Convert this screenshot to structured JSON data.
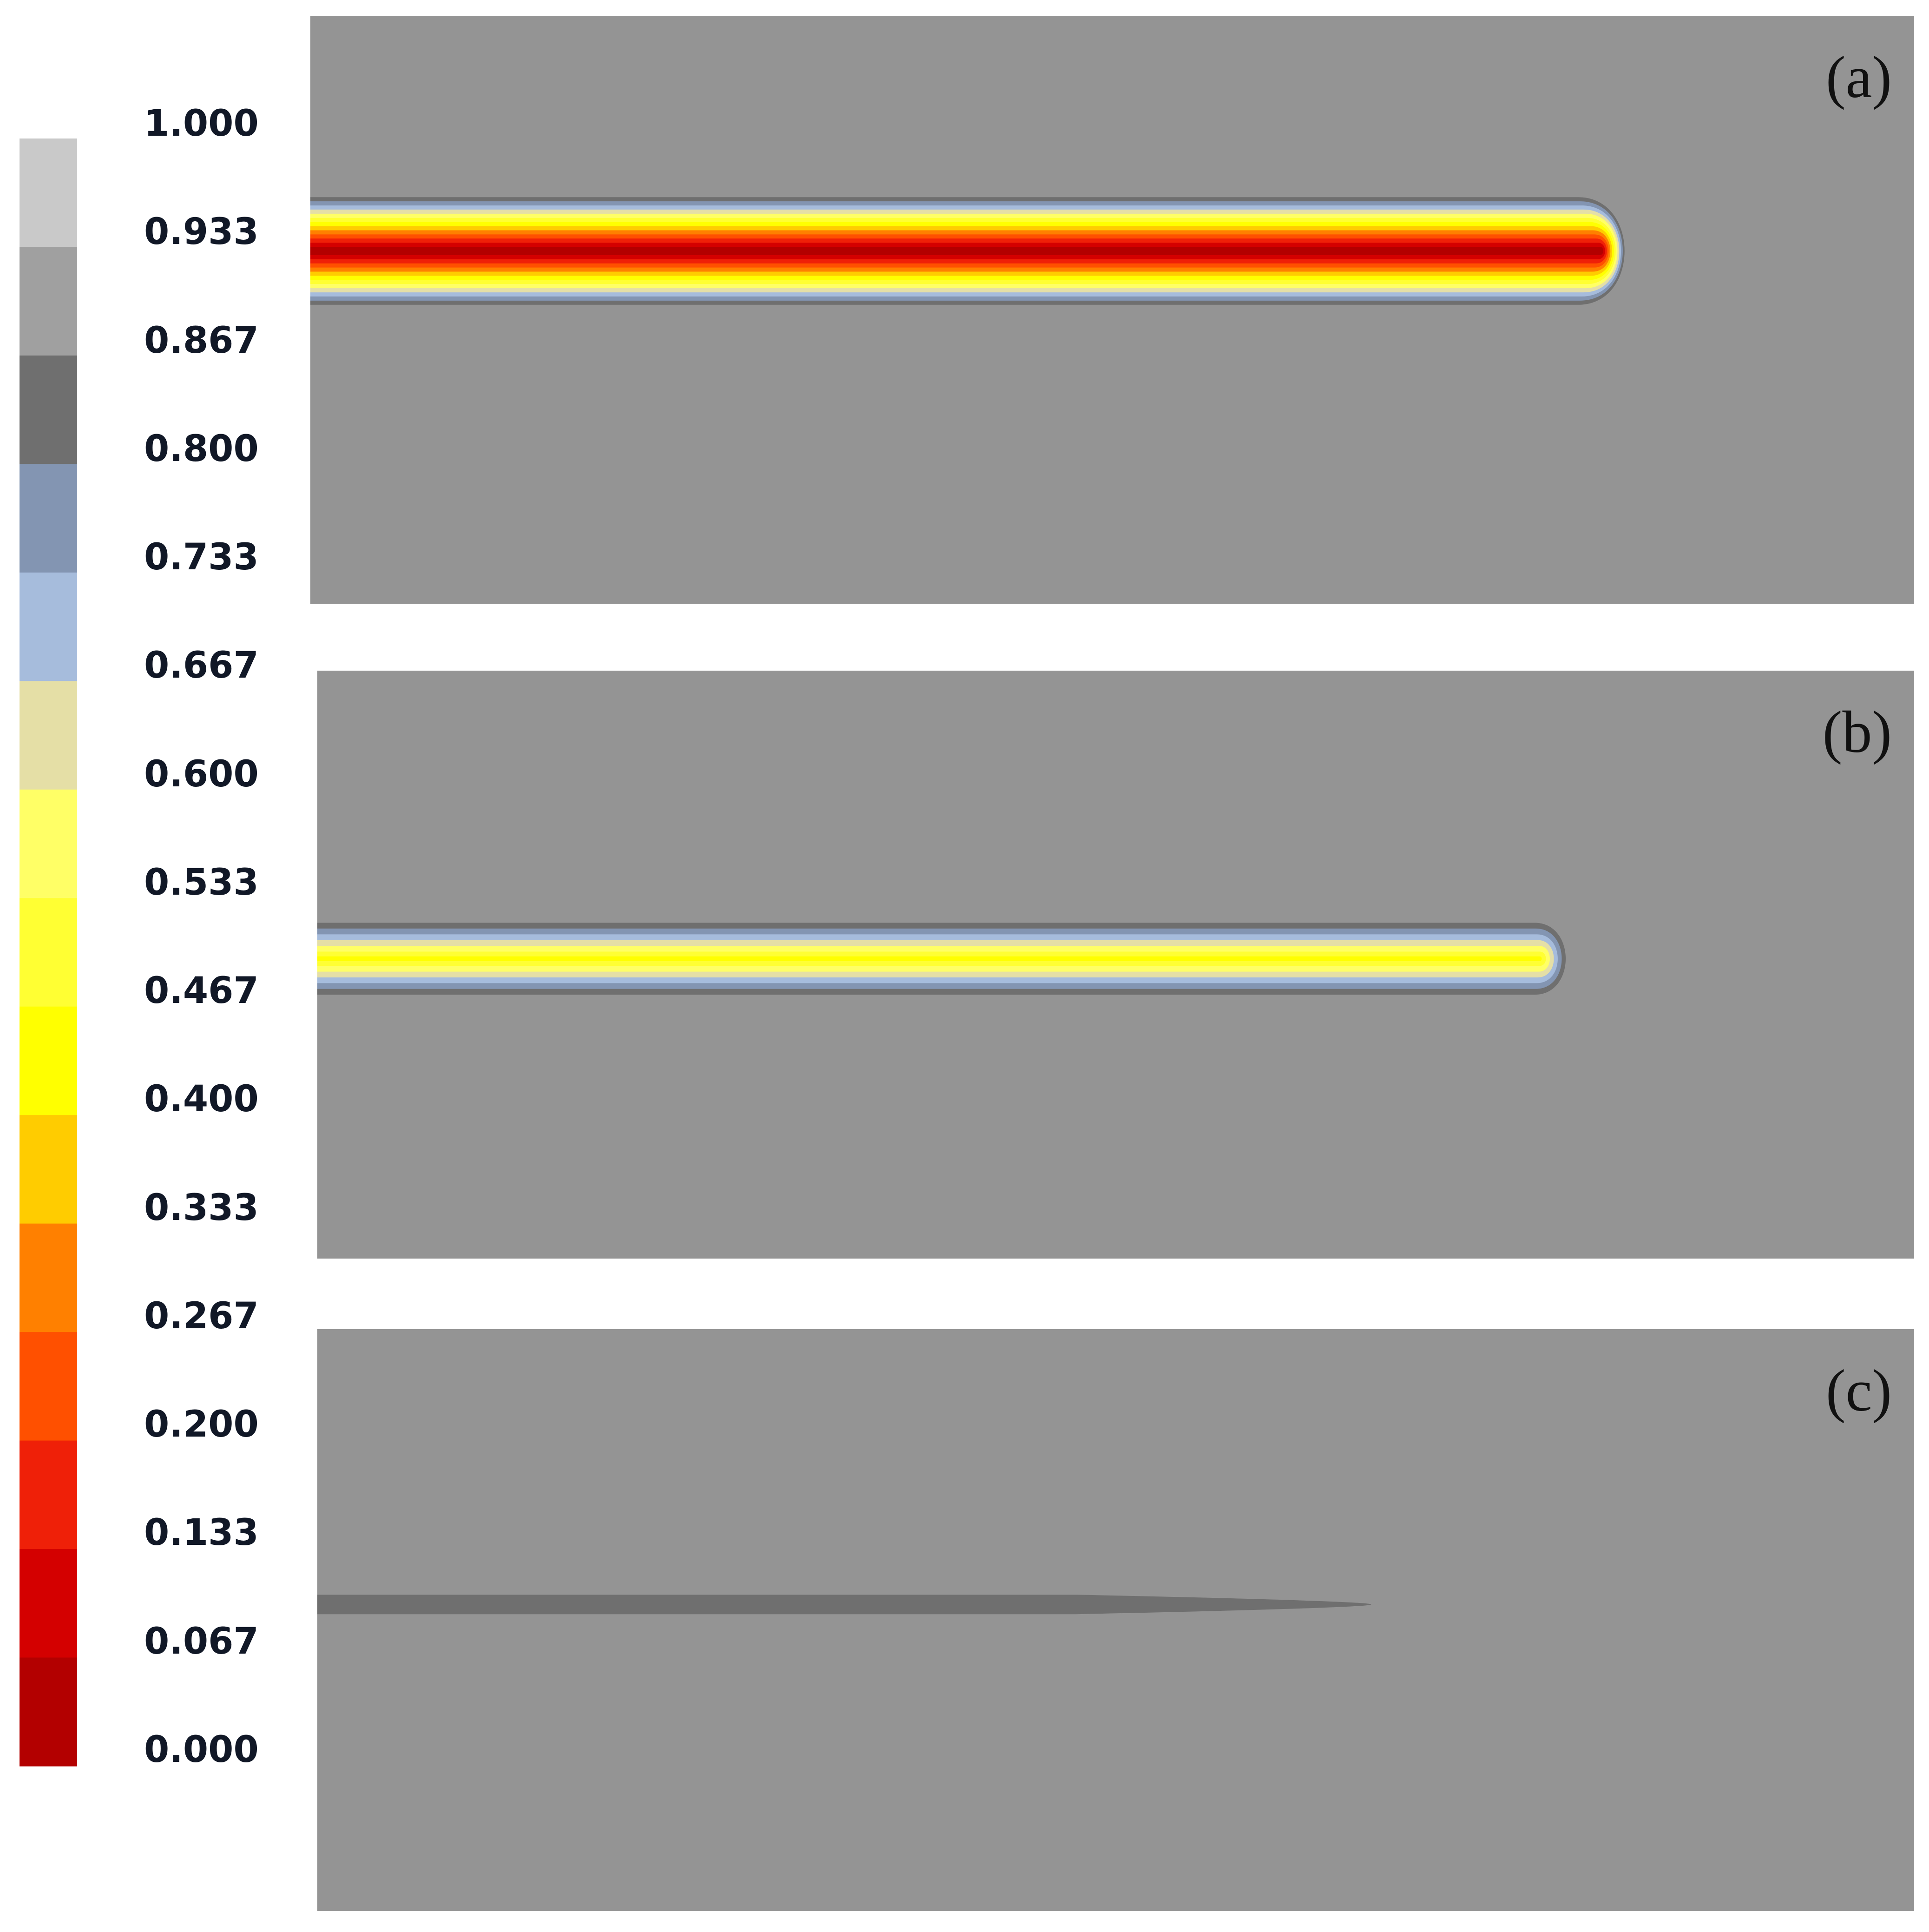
{
  "chart_data": {
    "type": "heatmap",
    "colorbar": {
      "tick_labels": [
        "1.000",
        "0.933",
        "0.867",
        "0.800",
        "0.733",
        "0.667",
        "0.600",
        "0.533",
        "0.467",
        "0.400",
        "0.333",
        "0.267",
        "0.200",
        "0.133",
        "0.067",
        "0.000"
      ],
      "levels": [
        {
          "range": [
            0.933,
            1.0
          ],
          "color": "#c9c9c9"
        },
        {
          "range": [
            0.867,
            0.933
          ],
          "color": "#a0a0a0"
        },
        {
          "range": [
            0.8,
            0.867
          ],
          "color": "#6f6f6f"
        },
        {
          "range": [
            0.733,
            0.8
          ],
          "color": "#8395b2"
        },
        {
          "range": [
            0.667,
            0.733
          ],
          "color": "#a6bcdc"
        },
        {
          "range": [
            0.6,
            0.667
          ],
          "color": "#e5dfa6"
        },
        {
          "range": [
            0.533,
            0.6
          ],
          "color": "#ffff66"
        },
        {
          "range": [
            0.467,
            0.533
          ],
          "color": "#ffff33"
        },
        {
          "range": [
            0.4,
            0.467
          ],
          "color": "#ffff00"
        },
        {
          "range": [
            0.333,
            0.4
          ],
          "color": "#ffcc00"
        },
        {
          "range": [
            0.267,
            0.333
          ],
          "color": "#ff8000"
        },
        {
          "range": [
            0.2,
            0.267
          ],
          "color": "#ff5000"
        },
        {
          "range": [
            0.133,
            0.2
          ],
          "color": "#ef2008"
        },
        {
          "range": [
            0.067,
            0.133
          ],
          "color": "#d40000"
        },
        {
          "range": [
            0.0,
            0.067
          ],
          "color": "#b30000"
        }
      ]
    },
    "background_color": "#949494",
    "panels": [
      {
        "label": "(a)",
        "min_value": 0.0,
        "front_extent": 0.83
      },
      {
        "label": "(b)",
        "min_value": 0.45,
        "front_extent": 0.79
      },
      {
        "label": "(c)",
        "min_value": 0.84,
        "front_extent": 0.66
      }
    ]
  }
}
